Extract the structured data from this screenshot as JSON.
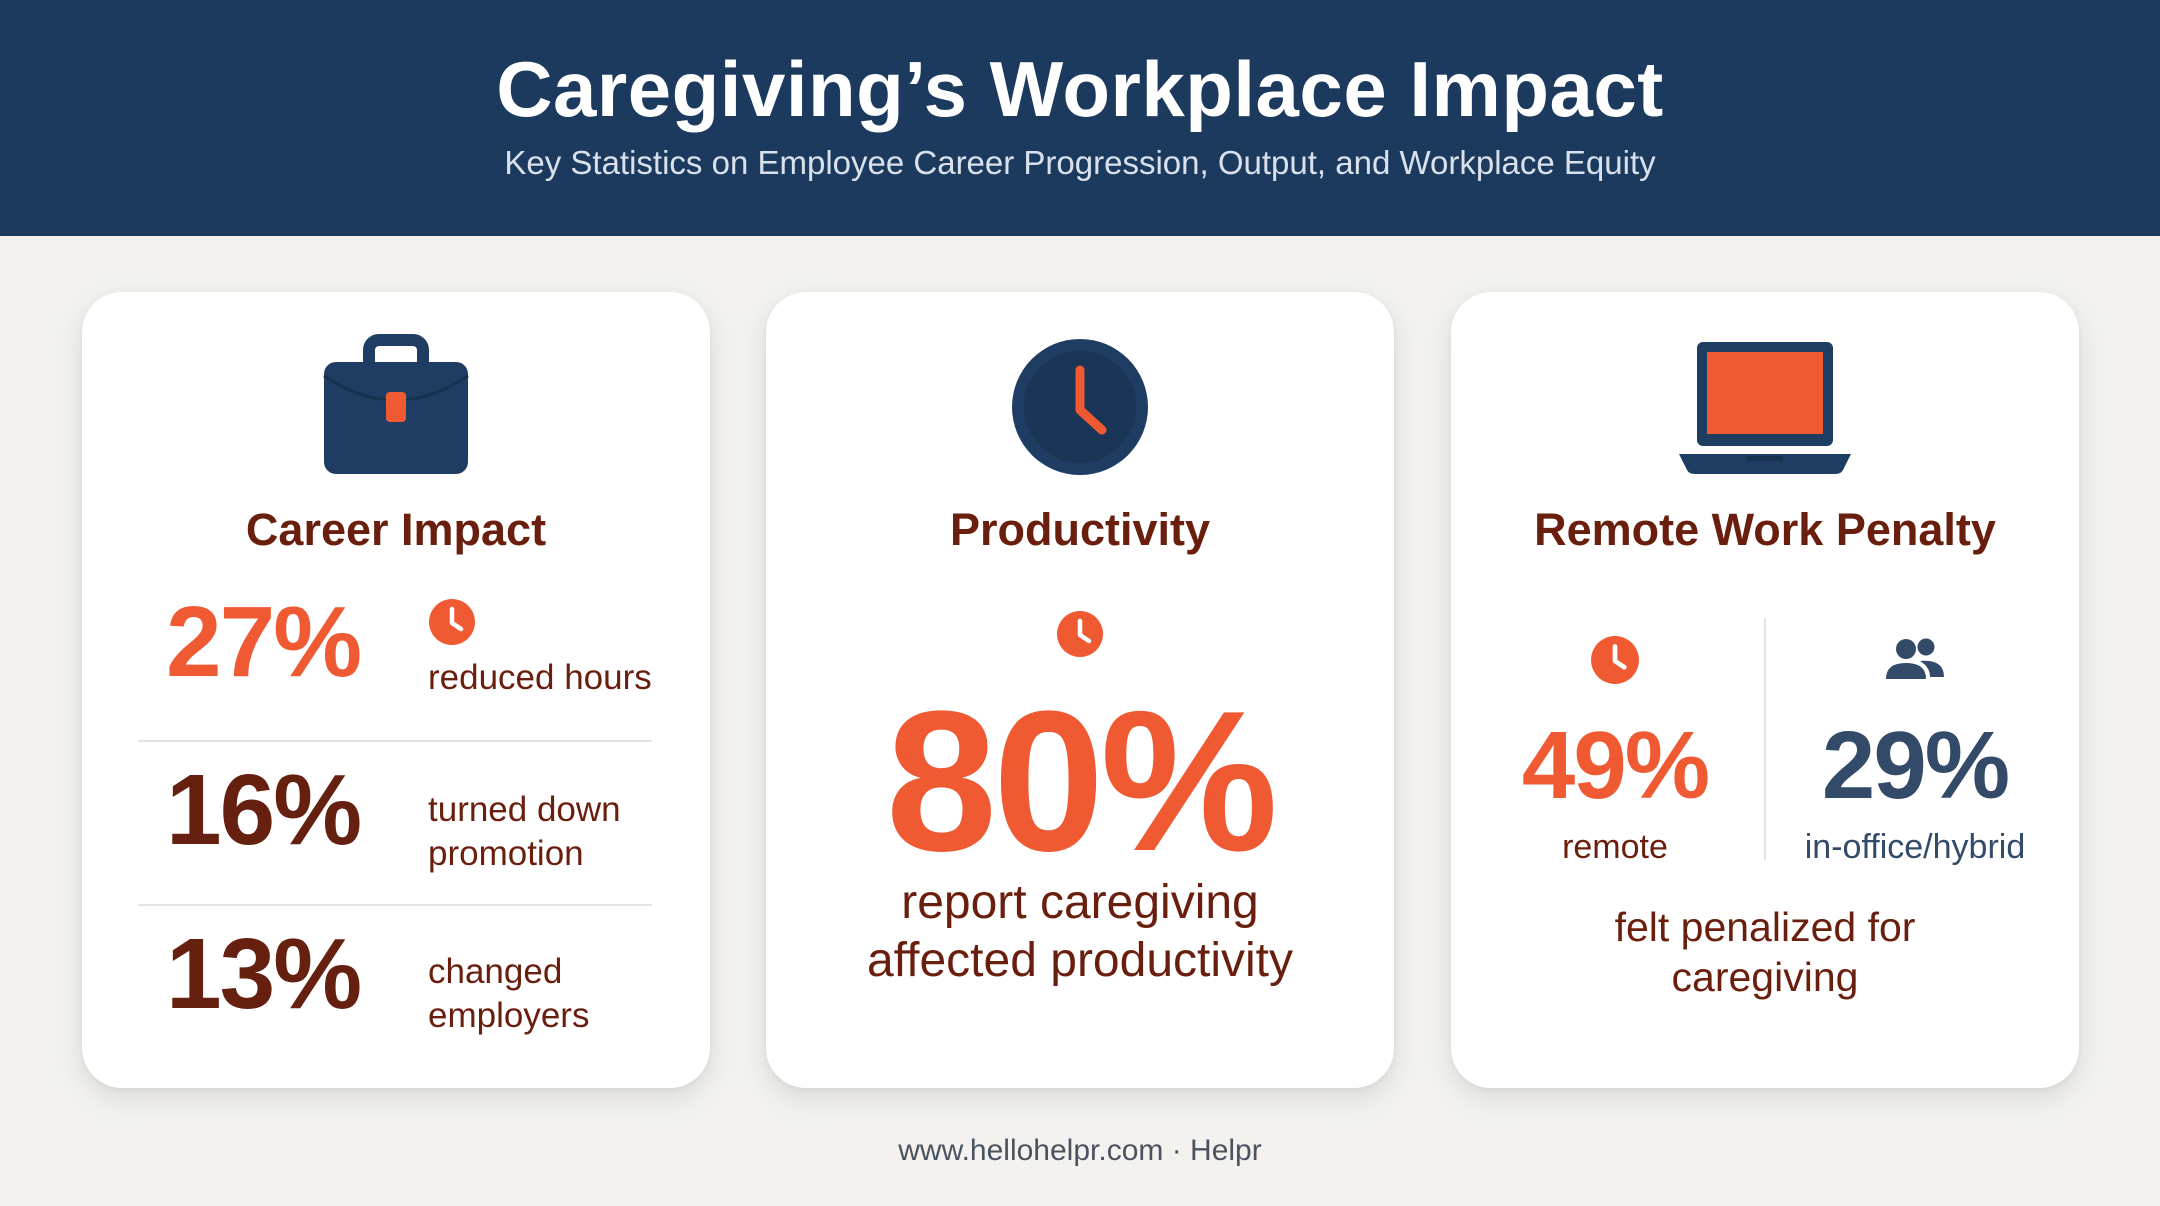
{
  "header": {
    "title": "Caregiving’s Workplace Impact",
    "subtitle": "Key Statistics on Employee Career Progression, Output, and Workplace Equity"
  },
  "colors": {
    "header_bg": "#1c3a5e",
    "accent_orange": "#f05a32",
    "dark_brown": "#66200f",
    "slate_blue": "#334a69",
    "page_bg": "#f3f2ee"
  },
  "cards": {
    "career": {
      "icon": "briefcase-icon",
      "title": "Career Impact",
      "stats": [
        {
          "value": "27%",
          "label": "reduced hours",
          "icon": "clock-icon"
        },
        {
          "value": "16%",
          "label_line1": "turned down",
          "label_line2": "promotion"
        },
        {
          "value": "13%",
          "label_line1": "changed",
          "label_line2": "employers"
        }
      ]
    },
    "productivity": {
      "icon": "clock-icon",
      "title": "Productivity",
      "value": "80%",
      "desc_line1": "report caregiving",
      "desc_line2": "affected productivity"
    },
    "remote": {
      "icon": "laptop-icon",
      "title": "Remote Work Penalty",
      "left": {
        "icon": "clock-icon",
        "value": "49%",
        "label": "remote"
      },
      "right": {
        "icon": "people-icon",
        "value": "29%",
        "label": "in-office/hybrid"
      },
      "desc_line1": "felt penalized for",
      "desc_line2": "caregiving"
    }
  },
  "footer": {
    "text": "www.hellohelpr.com · Helpr"
  }
}
